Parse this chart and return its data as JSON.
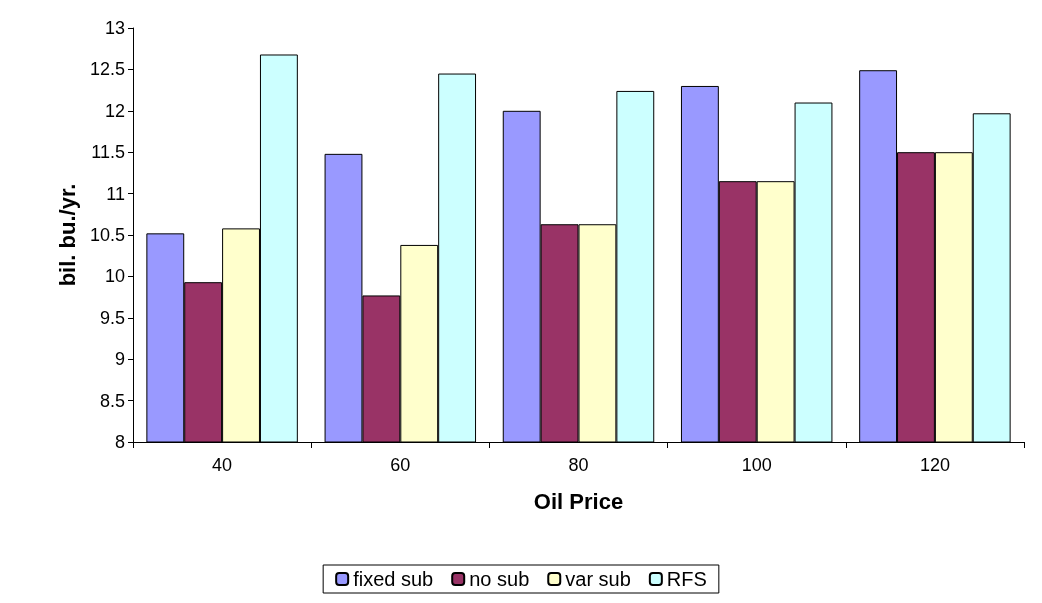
{
  "chart_data": {
    "type": "bar",
    "xlabel": "Oil Price",
    "ylabel": "bil. bu./yr.",
    "categories": [
      "40",
      "60",
      "80",
      "100",
      "120"
    ],
    "series": [
      {
        "name": "fixed sub",
        "color": "#9999ff",
        "values": [
          10.52,
          11.48,
          12.0,
          12.3,
          12.49
        ]
      },
      {
        "name": "no sub",
        "color": "#993366",
        "values": [
          9.93,
          9.77,
          10.63,
          11.15,
          11.5
        ]
      },
      {
        "name": "var sub",
        "color": "#ffffcc",
        "values": [
          10.58,
          10.38,
          10.63,
          11.15,
          11.5
        ]
      },
      {
        "name": "RFS",
        "color": "#ccffff",
        "values": [
          12.68,
          12.45,
          12.24,
          12.1,
          11.97
        ]
      }
    ],
    "ylim": [
      8,
      13
    ],
    "yticks": [
      8,
      8.5,
      9,
      9.5,
      10,
      10.5,
      11,
      11.5,
      12,
      12.5,
      13
    ],
    "grid": false,
    "legend": "bottom"
  }
}
